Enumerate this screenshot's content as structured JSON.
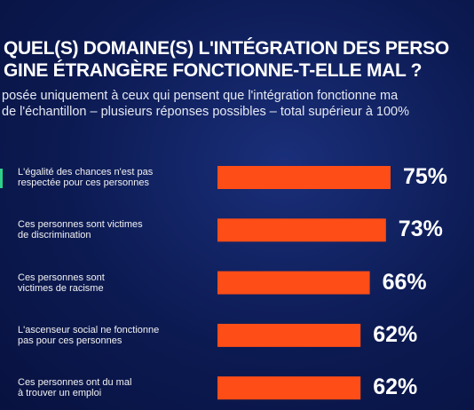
{
  "chart_data": {
    "type": "bar",
    "title": [
      "QUEL(S) DOMAINE(S) L'INTÉGRATION DES PERSO",
      "GINE ÉTRANGÈRE FONCTIONNE-T-ELLE MAL ?"
    ],
    "subtitle": [
      "posée uniquement à ceux qui pensent que l'intégration fonctionne ma",
      "de l'échantillon – plusieurs réponses possibles – total supérieur à 100%"
    ],
    "categories": [
      "L'égalité des chances n'est pas\nrespectée pour ces personnes",
      "Ces personnes sont victimes\nde discrimination",
      "Ces personnes sont\nvictimes de racisme",
      "L'ascenseur social ne fonctionne\npas pour ces personnes",
      "Ces personnes ont du mal\nà trouver un emploi"
    ],
    "values": [
      75,
      73,
      66,
      62,
      62
    ],
    "value_labels": [
      "75%",
      "73%",
      "66%",
      "62%",
      "62%"
    ],
    "color": "#ff4d17"
  }
}
